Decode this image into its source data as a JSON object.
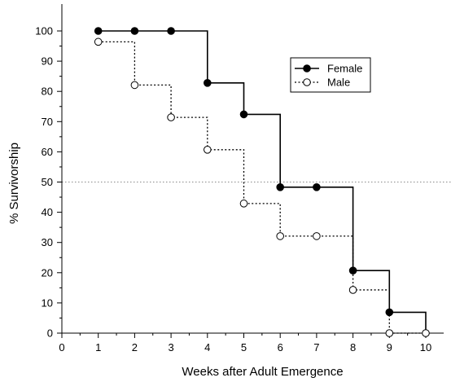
{
  "chart_data": {
    "type": "line",
    "subtype": "step",
    "title": "",
    "xlabel": "Weeks after Adult Emergence",
    "ylabel": "% Survivorship",
    "xlim": [
      0,
      10.6
    ],
    "ylim": [
      0,
      105
    ],
    "xticks": [
      0,
      1,
      2,
      3,
      4,
      5,
      6,
      7,
      8,
      9,
      10
    ],
    "yticks": [
      0,
      10,
      20,
      30,
      40,
      50,
      60,
      70,
      80,
      90,
      100
    ],
    "grid": false,
    "reference_line": {
      "y": 50,
      "style": "dotted"
    },
    "legend_position": "top-right",
    "series": [
      {
        "name": "Female",
        "marker": "filled-circle",
        "line_style": "solid",
        "x": [
          1,
          2,
          3,
          4,
          5,
          6,
          7,
          8,
          9
        ],
        "y": [
          100,
          100,
          100,
          82.8,
          72.4,
          48.3,
          48.3,
          20.7,
          6.9
        ],
        "end_x": 10
      },
      {
        "name": "Male",
        "marker": "open-circle",
        "line_style": "dotted",
        "x": [
          1,
          2,
          3,
          4,
          5,
          6,
          7,
          8,
          9,
          10
        ],
        "y": [
          96.4,
          82.1,
          71.4,
          60.7,
          42.9,
          32.1,
          32.1,
          14.3,
          0,
          0
        ],
        "end_x": 10
      }
    ]
  }
}
